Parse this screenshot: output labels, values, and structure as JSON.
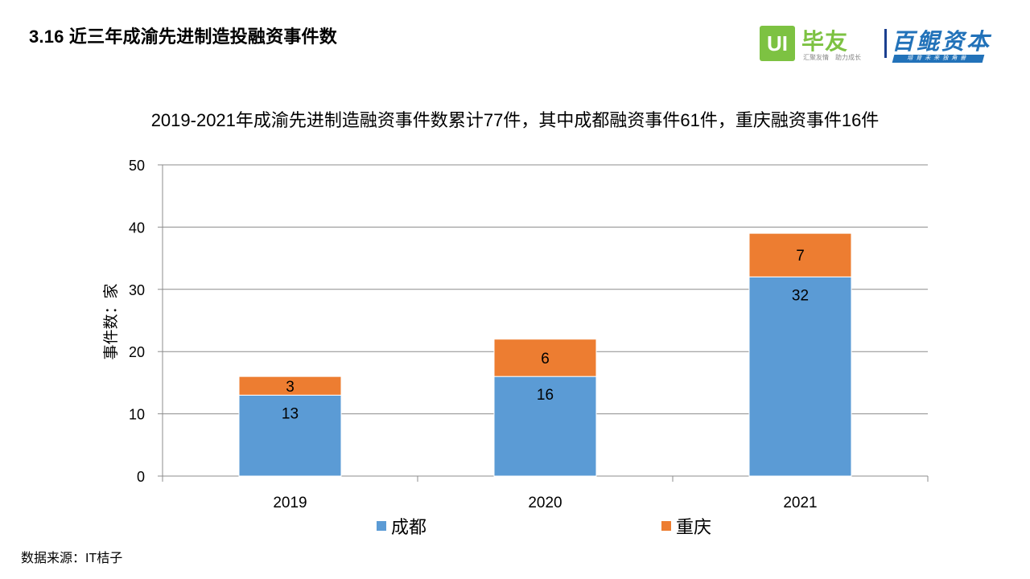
{
  "page": {
    "title": "3.16 近三年成渝先进制造投融资事件数",
    "subtitle": "2019-2021年成渝先进制造融资事件数累计77件，其中成都融资事件61件，重庆融资事件16件",
    "source": "数据来源：IT桔子"
  },
  "logos": {
    "biyou": {
      "mark": "UI",
      "name": "毕友",
      "slogan": "汇聚友情　助力成长",
      "color": "#7dc242"
    },
    "baikun": {
      "name": "百鲲资本",
      "slogan": "培育未来独角兽",
      "color": "#2272b9"
    }
  },
  "chart_data": {
    "type": "bar",
    "stacked": true,
    "categories": [
      "2019",
      "2020",
      "2021"
    ],
    "series": [
      {
        "name": "成都",
        "values": [
          13,
          16,
          32
        ],
        "color": "#5b9bd5"
      },
      {
        "name": "重庆",
        "values": [
          3,
          6,
          7
        ],
        "color": "#ed7d31"
      }
    ],
    "ylabel": "事件数：家",
    "xlabel": "",
    "ylim": [
      0,
      50
    ],
    "yticks": [
      0,
      10,
      20,
      30,
      40,
      50
    ],
    "grid": true,
    "legend": "bottom",
    "data_labels": true
  }
}
